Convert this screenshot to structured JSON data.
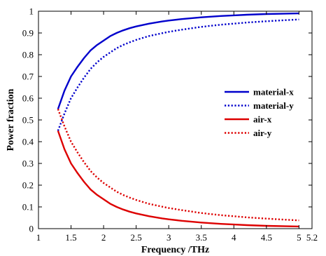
{
  "chart_data": {
    "type": "line",
    "xlabel": "Frequency /THz",
    "ylabel": "Power fraction",
    "xlim": [
      1,
      5.2
    ],
    "ylim": [
      0,
      1
    ],
    "xticks": [
      1,
      1.5,
      2,
      2.5,
      3,
      3.5,
      4,
      4.5,
      5,
      5.2
    ],
    "xtick_labels": [
      "1",
      "1.5",
      "2",
      "2.5",
      "3",
      "3.5",
      "4",
      "4.5",
      "5",
      "5.2"
    ],
    "yticks": [
      0,
      0.1,
      0.2,
      0.3,
      0.4,
      0.5,
      0.6,
      0.7,
      0.8,
      0.9,
      1
    ],
    "ytick_labels": [
      "0",
      "0.1",
      "0.2",
      "0.3",
      "0.4",
      "0.5",
      "0.6",
      "0.7",
      "0.8",
      "0.9",
      "1"
    ],
    "grid": false,
    "legend_position": "right-middle",
    "x": [
      1.3,
      1.4,
      1.5,
      1.6,
      1.7,
      1.8,
      1.9,
      2.0,
      2.1,
      2.2,
      2.3,
      2.4,
      2.5,
      2.7,
      2.9,
      3.0,
      3.2,
      3.5,
      3.8,
      4.0,
      4.2,
      4.5,
      4.8,
      5.0
    ],
    "series": [
      {
        "name": "material-x",
        "color": "#0000cc",
        "style": "solid",
        "values": [
          0.55,
          0.635,
          0.7,
          0.745,
          0.785,
          0.82,
          0.845,
          0.865,
          0.885,
          0.9,
          0.912,
          0.922,
          0.93,
          0.943,
          0.953,
          0.957,
          0.964,
          0.972,
          0.978,
          0.981,
          0.984,
          0.987,
          0.989,
          0.99
        ]
      },
      {
        "name": "material-y",
        "color": "#0000cc",
        "style": "dotted",
        "values": [
          0.45,
          0.53,
          0.6,
          0.65,
          0.695,
          0.735,
          0.765,
          0.79,
          0.81,
          0.83,
          0.845,
          0.857,
          0.868,
          0.886,
          0.899,
          0.905,
          0.915,
          0.928,
          0.938,
          0.943,
          0.948,
          0.954,
          0.959,
          0.962
        ]
      },
      {
        "name": "air-x",
        "color": "#dd0000",
        "style": "solid",
        "values": [
          0.45,
          0.365,
          0.3,
          0.255,
          0.215,
          0.18,
          0.155,
          0.135,
          0.115,
          0.1,
          0.088,
          0.078,
          0.07,
          0.057,
          0.047,
          0.043,
          0.036,
          0.028,
          0.022,
          0.019,
          0.016,
          0.013,
          0.011,
          0.01
        ]
      },
      {
        "name": "air-y",
        "color": "#dd0000",
        "style": "dotted",
        "values": [
          0.55,
          0.47,
          0.4,
          0.35,
          0.305,
          0.265,
          0.235,
          0.21,
          0.19,
          0.17,
          0.155,
          0.143,
          0.132,
          0.114,
          0.101,
          0.095,
          0.085,
          0.072,
          0.062,
          0.057,
          0.052,
          0.046,
          0.041,
          0.038
        ]
      }
    ]
  }
}
